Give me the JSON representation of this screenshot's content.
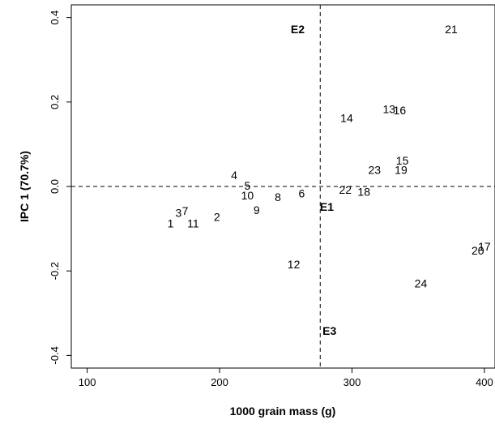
{
  "chart_data": {
    "type": "scatter",
    "xlabel": "1000 grain mass (g)",
    "ylabel": "IPC 1 (70.7%)",
    "xlim": [
      88,
      408
    ],
    "ylim": [
      -0.43,
      0.43
    ],
    "xticks": [
      100,
      200,
      300,
      400
    ],
    "yticks": [
      -0.4,
      -0.2,
      0.0,
      0.2,
      0.4
    ],
    "xtick_labels": [
      "100",
      "200",
      "300",
      "400"
    ],
    "ytick_labels": [
      "-0.4",
      "-0.2",
      "0.0",
      "0.2",
      "0.4"
    ],
    "vline_x": 276,
    "hline_y": 0.0,
    "grid": false,
    "points": [
      {
        "label": "1",
        "x": 163,
        "y": -0.087
      },
      {
        "label": "2",
        "x": 198,
        "y": -0.072
      },
      {
        "label": "3",
        "x": 169,
        "y": -0.062
      },
      {
        "label": "4",
        "x": 211,
        "y": 0.027
      },
      {
        "label": "5",
        "x": 221,
        "y": 0.002
      },
      {
        "label": "6",
        "x": 262,
        "y": -0.016
      },
      {
        "label": "7",
        "x": 174,
        "y": -0.058
      },
      {
        "label": "8",
        "x": 244,
        "y": -0.025
      },
      {
        "label": "9",
        "x": 228,
        "y": -0.056
      },
      {
        "label": "10",
        "x": 221,
        "y": -0.021
      },
      {
        "label": "11",
        "x": 180,
        "y": -0.087
      },
      {
        "label": "12",
        "x": 256,
        "y": -0.184
      },
      {
        "label": "13",
        "x": 328,
        "y": 0.183
      },
      {
        "label": "14",
        "x": 296,
        "y": 0.162
      },
      {
        "label": "15",
        "x": 338,
        "y": 0.061
      },
      {
        "label": "16",
        "x": 336,
        "y": 0.18
      },
      {
        "label": "17",
        "x": 400,
        "y": -0.142
      },
      {
        "label": "18",
        "x": 309,
        "y": -0.012
      },
      {
        "label": "19",
        "x": 337,
        "y": 0.039
      },
      {
        "label": "20",
        "x": 395,
        "y": -0.152
      },
      {
        "label": "21",
        "x": 375,
        "y": 0.372
      },
      {
        "label": "22",
        "x": 295,
        "y": -0.008
      },
      {
        "label": "23",
        "x": 317,
        "y": 0.039
      },
      {
        "label": "24",
        "x": 352,
        "y": -0.229
      }
    ],
    "environments": [
      {
        "label": "E1",
        "x": 281,
        "y": -0.048
      },
      {
        "label": "E2",
        "x": 259,
        "y": 0.372
      },
      {
        "label": "E3",
        "x": 283,
        "y": -0.342
      }
    ]
  }
}
